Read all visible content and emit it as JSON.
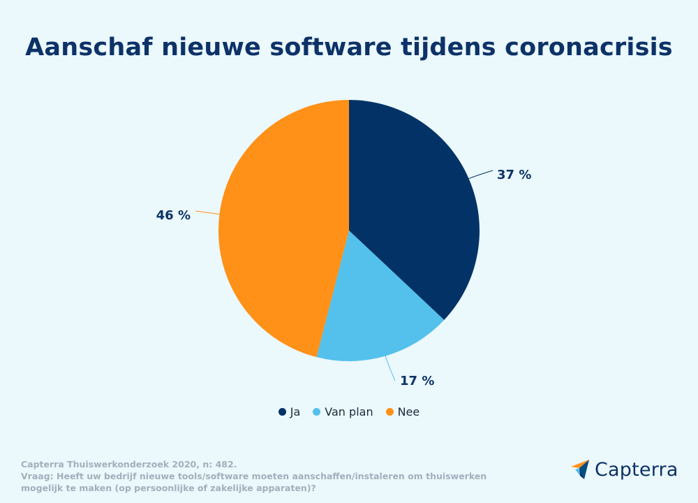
{
  "title": "Aanschaf nieuwe software tijdens coronacrisis",
  "chart_data": {
    "type": "pie",
    "title": "Aanschaf nieuwe software tijdens coronacrisis",
    "categories": [
      "Ja",
      "Van plan",
      "Nee"
    ],
    "values": [
      37,
      17,
      46
    ],
    "labels": [
      "37 %",
      "17 %",
      "46 %"
    ],
    "colors": [
      "#033366",
      "#54c0ec",
      "#ff9118"
    ],
    "legend_position": "bottom"
  },
  "legend": [
    {
      "label": "Ja",
      "color": "#033366"
    },
    {
      "label": "Van plan",
      "color": "#54c0ec"
    },
    {
      "label": "Nee",
      "color": "#ff9118"
    }
  ],
  "footer": {
    "source": "Capterra Thuiswerkonderzoek 2020, n: 482.",
    "question": "Vraag: Heeft uw bedrijf nieuwe tools/software moeten aanschaffen/instaleren om thuiswerken mogelijk te maken (op persoonlijke of zakelijke apparaten)?"
  },
  "logo": {
    "text": "Capterra",
    "icon": "capterra-logo-icon"
  }
}
